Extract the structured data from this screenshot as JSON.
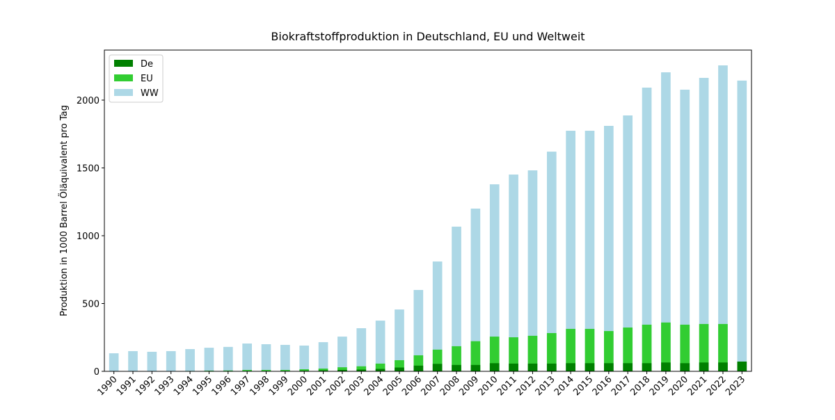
{
  "chart_data": {
    "type": "bar",
    "barmode": "overlay",
    "title": "Biokraftstoffproduktion in Deutschland, EU und Weltweit",
    "y_label": "Produktion in 1000 Barrel Öläquivalent pro Tag",
    "categories": [
      "1990",
      "1991",
      "1992",
      "1993",
      "1994",
      "1995",
      "1996",
      "1997",
      "1998",
      "1999",
      "2000",
      "2001",
      "2002",
      "2003",
      "2004",
      "2005",
      "2006",
      "2007",
      "2008",
      "2009",
      "2010",
      "2011",
      "2012",
      "2013",
      "2014",
      "2015",
      "2016",
      "2017",
      "2018",
      "2019",
      "2020",
      "2021",
      "2022",
      "2023"
    ],
    "series": [
      {
        "name": "De",
        "color": "#008000",
        "values": [
          0,
          0,
          0,
          0,
          0,
          0,
          1,
          2,
          2,
          3,
          5,
          7,
          10,
          13,
          18,
          28,
          42,
          55,
          47,
          47,
          60,
          57,
          57,
          57,
          60,
          60,
          60,
          60,
          60,
          65,
          60,
          65,
          65,
          72
        ]
      },
      {
        "name": "EU",
        "color": "#32cd32",
        "values": [
          0,
          1,
          1,
          2,
          3,
          5,
          6,
          10,
          10,
          10,
          15,
          20,
          30,
          37,
          57,
          82,
          118,
          160,
          185,
          222,
          256,
          251,
          262,
          282,
          313,
          313,
          297,
          323,
          344,
          360,
          344,
          349,
          349,
          null
        ]
      },
      {
        "name": "WW",
        "color": "#add8e6",
        "values": [
          133,
          149,
          144,
          149,
          164,
          174,
          180,
          205,
          200,
          195,
          190,
          215,
          256,
          318,
          374,
          456,
          600,
          810,
          1067,
          1200,
          1379,
          1451,
          1482,
          1620,
          1774,
          1774,
          1810,
          1887,
          2092,
          2205,
          2077,
          2164,
          2256,
          2144
        ]
      }
    ],
    "ylim": [
      0,
      2369
    ],
    "yticks": [
      0,
      500,
      1000,
      1500,
      2000
    ],
    "grid": false,
    "legend": "upper left"
  }
}
